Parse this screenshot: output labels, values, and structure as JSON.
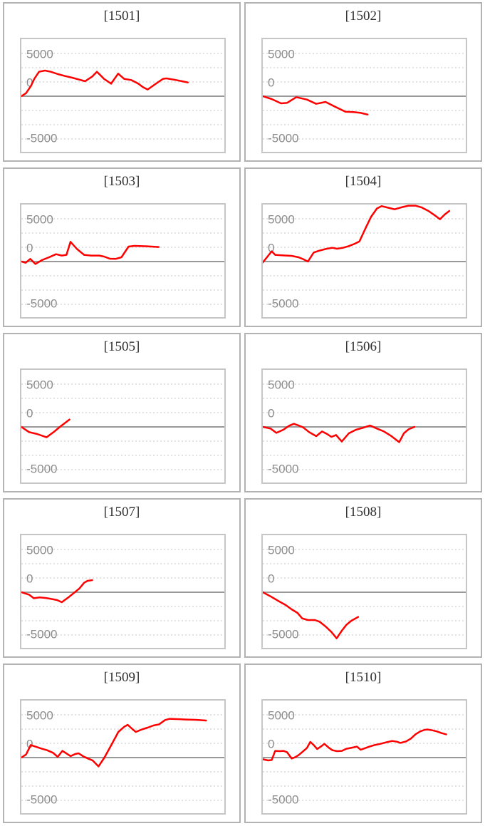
{
  "page": {
    "background": "#ffffff"
  },
  "colors": {
    "series_line": "#ff0000",
    "minor_grid": "#e3e3e3",
    "zero_axis": "#999999",
    "tick_label": "#8c8c8c",
    "title_text": "#2e2e2e",
    "plot_border": "#c6c6c6",
    "card_border": "#b3b3b3"
  },
  "axis": {
    "tick_labels": [
      "5000",
      "0",
      "-5000"
    ],
    "tick_values": [
      5000,
      0,
      -5000
    ],
    "ylim": [
      -6580,
      6580
    ],
    "minor_grid_values": [
      5000,
      3333,
      1667,
      -1667,
      -3333,
      -5000
    ],
    "zero_line_value": 0,
    "grid_style": "dotted",
    "legend": "none"
  },
  "chart_data": [
    {
      "type": "line",
      "title": "[1501]",
      "points": [
        [
          0,
          0
        ],
        [
          0.023,
          360
        ],
        [
          0.047,
          1190
        ],
        [
          0.064,
          2030
        ],
        [
          0.087,
          2860
        ],
        [
          0.116,
          3000
        ],
        [
          0.145,
          2860
        ],
        [
          0.18,
          2580
        ],
        [
          0.215,
          2360
        ],
        [
          0.25,
          2170
        ],
        [
          0.285,
          1940
        ],
        [
          0.314,
          1750
        ],
        [
          0.349,
          2300
        ],
        [
          0.372,
          2860
        ],
        [
          0.39,
          2440
        ],
        [
          0.407,
          2030
        ],
        [
          0.442,
          1470
        ],
        [
          0.477,
          2640
        ],
        [
          0.506,
          2030
        ],
        [
          0.541,
          1890
        ],
        [
          0.576,
          1470
        ],
        [
          0.599,
          1060
        ],
        [
          0.622,
          780
        ],
        [
          0.663,
          1470
        ],
        [
          0.698,
          2030
        ],
        [
          0.715,
          2080
        ],
        [
          0.762,
          1890
        ],
        [
          0.82,
          1610
        ]
      ]
    },
    {
      "type": "line",
      "title": "[1502]",
      "points": [
        [
          0,
          0
        ],
        [
          0.044,
          -330
        ],
        [
          0.09,
          -830
        ],
        [
          0.119,
          -780
        ],
        [
          0.165,
          -110
        ],
        [
          0.217,
          -390
        ],
        [
          0.263,
          -890
        ],
        [
          0.309,
          -670
        ],
        [
          0.355,
          -1220
        ],
        [
          0.407,
          -1810
        ],
        [
          0.447,
          -1860
        ],
        [
          0.482,
          -1950
        ],
        [
          0.516,
          -2140
        ]
      ]
    },
    {
      "type": "line",
      "title": "[1503]",
      "points": [
        [
          0,
          0
        ],
        [
          0.021,
          -140
        ],
        [
          0.044,
          310
        ],
        [
          0.069,
          -280
        ],
        [
          0.101,
          170
        ],
        [
          0.136,
          500
        ],
        [
          0.171,
          860
        ],
        [
          0.199,
          700
        ],
        [
          0.222,
          780
        ],
        [
          0.242,
          2310
        ],
        [
          0.274,
          1470
        ],
        [
          0.309,
          780
        ],
        [
          0.343,
          700
        ],
        [
          0.384,
          700
        ],
        [
          0.407,
          580
        ],
        [
          0.436,
          330
        ],
        [
          0.464,
          310
        ],
        [
          0.493,
          500
        ],
        [
          0.528,
          1750
        ],
        [
          0.557,
          1830
        ],
        [
          0.62,
          1780
        ],
        [
          0.677,
          1700
        ]
      ]
    },
    {
      "type": "line",
      "title": "[1504]",
      "points": [
        [
          0,
          -100
        ],
        [
          0.044,
          1200
        ],
        [
          0.061,
          780
        ],
        [
          0.101,
          720
        ],
        [
          0.142,
          670
        ],
        [
          0.176,
          500
        ],
        [
          0.199,
          280
        ],
        [
          0.222,
          0
        ],
        [
          0.251,
          1060
        ],
        [
          0.28,
          1280
        ],
        [
          0.315,
          1500
        ],
        [
          0.343,
          1610
        ],
        [
          0.366,
          1500
        ],
        [
          0.395,
          1610
        ],
        [
          0.424,
          1810
        ],
        [
          0.453,
          2080
        ],
        [
          0.476,
          2360
        ],
        [
          0.505,
          3830
        ],
        [
          0.533,
          5220
        ],
        [
          0.562,
          6200
        ],
        [
          0.585,
          6480
        ],
        [
          0.62,
          6280
        ],
        [
          0.649,
          6110
        ],
        [
          0.683,
          6340
        ],
        [
          0.718,
          6530
        ],
        [
          0.752,
          6530
        ],
        [
          0.781,
          6340
        ],
        [
          0.816,
          5920
        ],
        [
          0.85,
          5360
        ],
        [
          0.873,
          4950
        ],
        [
          0.896,
          5500
        ],
        [
          0.919,
          5920
        ]
      ]
    },
    {
      "type": "line",
      "title": "[1505]",
      "points": [
        [
          0,
          0
        ],
        [
          0.038,
          -610
        ],
        [
          0.078,
          -830
        ],
        [
          0.124,
          -1220
        ],
        [
          0.159,
          -610
        ],
        [
          0.194,
          80
        ],
        [
          0.237,
          860
        ]
      ]
    },
    {
      "type": "line",
      "title": "[1506]",
      "points": [
        [
          0,
          0
        ],
        [
          0.038,
          -190
        ],
        [
          0.067,
          -700
        ],
        [
          0.101,
          -330
        ],
        [
          0.13,
          140
        ],
        [
          0.153,
          360
        ],
        [
          0.176,
          170
        ],
        [
          0.199,
          -60
        ],
        [
          0.228,
          -610
        ],
        [
          0.263,
          -1080
        ],
        [
          0.292,
          -530
        ],
        [
          0.315,
          -810
        ],
        [
          0.338,
          -1170
        ],
        [
          0.361,
          -950
        ],
        [
          0.389,
          -1720
        ],
        [
          0.424,
          -750
        ],
        [
          0.459,
          -330
        ],
        [
          0.493,
          -110
        ],
        [
          0.528,
          170
        ],
        [
          0.562,
          -190
        ],
        [
          0.597,
          -530
        ],
        [
          0.631,
          -1030
        ],
        [
          0.672,
          -1780
        ],
        [
          0.695,
          -750
        ],
        [
          0.718,
          -280
        ],
        [
          0.747,
          0
        ]
      ]
    },
    {
      "type": "line",
      "title": "[1507]",
      "points": [
        [
          0,
          0
        ],
        [
          0.038,
          -280
        ],
        [
          0.061,
          -700
        ],
        [
          0.09,
          -610
        ],
        [
          0.119,
          -670
        ],
        [
          0.147,
          -780
        ],
        [
          0.176,
          -920
        ],
        [
          0.199,
          -1170
        ],
        [
          0.234,
          -560
        ],
        [
          0.263,
          0
        ],
        [
          0.286,
          440
        ],
        [
          0.309,
          1110
        ],
        [
          0.326,
          1330
        ],
        [
          0.349,
          1420
        ]
      ]
    },
    {
      "type": "line",
      "title": "[1508]",
      "points": [
        [
          0,
          0
        ],
        [
          0.044,
          -560
        ],
        [
          0.078,
          -1030
        ],
        [
          0.113,
          -1500
        ],
        [
          0.142,
          -2000
        ],
        [
          0.171,
          -2420
        ],
        [
          0.194,
          -3060
        ],
        [
          0.222,
          -3250
        ],
        [
          0.257,
          -3250
        ],
        [
          0.28,
          -3450
        ],
        [
          0.309,
          -4000
        ],
        [
          0.338,
          -4640
        ],
        [
          0.364,
          -5390
        ],
        [
          0.389,
          -4500
        ],
        [
          0.412,
          -3810
        ],
        [
          0.436,
          -3330
        ],
        [
          0.47,
          -2890
        ]
      ]
    },
    {
      "type": "line",
      "title": "[1509]",
      "points": [
        [
          0,
          0
        ],
        [
          0.023,
          360
        ],
        [
          0.046,
          1470
        ],
        [
          0.069,
          1280
        ],
        [
          0.098,
          1060
        ],
        [
          0.127,
          860
        ],
        [
          0.156,
          560
        ],
        [
          0.179,
          80
        ],
        [
          0.202,
          780
        ],
        [
          0.225,
          440
        ],
        [
          0.242,
          170
        ],
        [
          0.265,
          420
        ],
        [
          0.282,
          500
        ],
        [
          0.305,
          140
        ],
        [
          0.328,
          -110
        ],
        [
          0.351,
          -330
        ],
        [
          0.38,
          -1030
        ],
        [
          0.409,
          0
        ],
        [
          0.443,
          1470
        ],
        [
          0.478,
          3000
        ],
        [
          0.507,
          3610
        ],
        [
          0.524,
          3830
        ],
        [
          0.547,
          3330
        ],
        [
          0.564,
          3000
        ],
        [
          0.593,
          3280
        ],
        [
          0.622,
          3500
        ],
        [
          0.65,
          3750
        ],
        [
          0.679,
          3890
        ],
        [
          0.708,
          4390
        ],
        [
          0.731,
          4530
        ],
        [
          0.766,
          4500
        ],
        [
          0.812,
          4450
        ],
        [
          0.858,
          4420
        ],
        [
          0.91,
          4330
        ]
      ]
    },
    {
      "type": "line",
      "title": "[1510]",
      "points": [
        [
          0,
          -190
        ],
        [
          0.026,
          -330
        ],
        [
          0.044,
          -280
        ],
        [
          0.061,
          780
        ],
        [
          0.084,
          750
        ],
        [
          0.101,
          780
        ],
        [
          0.119,
          640
        ],
        [
          0.142,
          -110
        ],
        [
          0.159,
          30
        ],
        [
          0.176,
          280
        ],
        [
          0.194,
          640
        ],
        [
          0.217,
          1110
        ],
        [
          0.234,
          1830
        ],
        [
          0.251,
          1470
        ],
        [
          0.268,
          1000
        ],
        [
          0.286,
          1280
        ],
        [
          0.303,
          1610
        ],
        [
          0.326,
          1140
        ],
        [
          0.343,
          860
        ],
        [
          0.366,
          750
        ],
        [
          0.389,
          780
        ],
        [
          0.412,
          1030
        ],
        [
          0.441,
          1170
        ],
        [
          0.464,
          1280
        ],
        [
          0.482,
          920
        ],
        [
          0.505,
          1110
        ],
        [
          0.528,
          1310
        ],
        [
          0.551,
          1470
        ],
        [
          0.58,
          1610
        ],
        [
          0.608,
          1780
        ],
        [
          0.637,
          1940
        ],
        [
          0.66,
          1860
        ],
        [
          0.678,
          1720
        ],
        [
          0.706,
          1890
        ],
        [
          0.729,
          2220
        ],
        [
          0.752,
          2720
        ],
        [
          0.775,
          3060
        ],
        [
          0.798,
          3250
        ],
        [
          0.812,
          3280
        ],
        [
          0.835,
          3190
        ],
        [
          0.858,
          3060
        ],
        [
          0.881,
          2860
        ],
        [
          0.904,
          2720
        ]
      ]
    }
  ]
}
